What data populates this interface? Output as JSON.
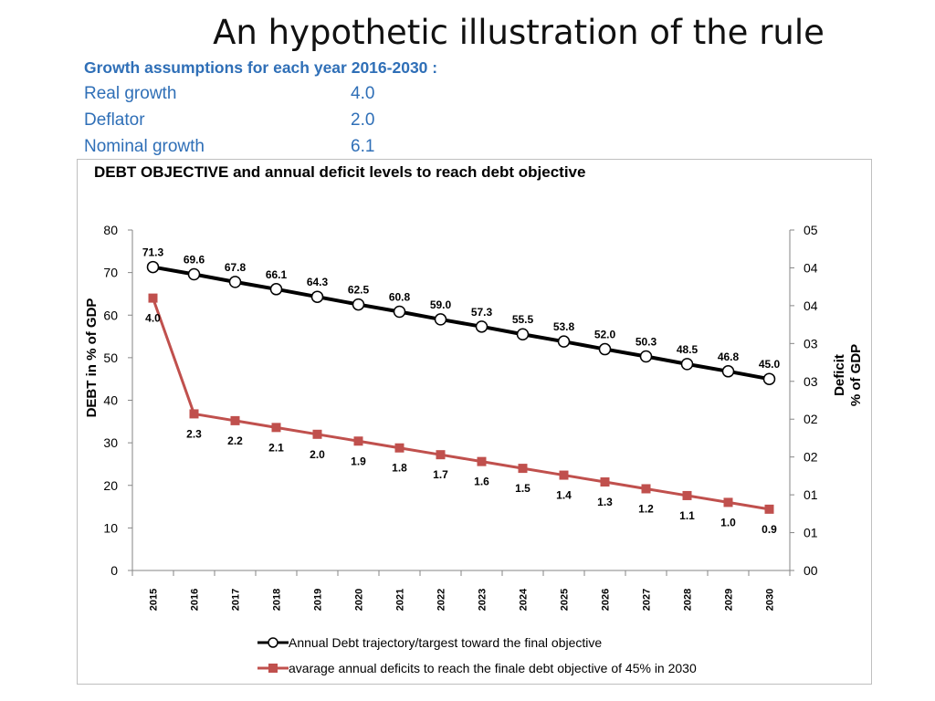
{
  "header": {
    "title": "An hypothetic illustration of the rule"
  },
  "assumptions": {
    "heading": "Growth assumptions for each year 2016-2030 :",
    "rows": [
      {
        "label": "Real growth",
        "value": "4.0"
      },
      {
        "label": "Deflator",
        "value": "2.0"
      },
      {
        "label": "Nominal growth",
        "value": "6.1"
      }
    ]
  },
  "colors": {
    "text_blue": "#2f6fb7",
    "debt_line": "#000000",
    "deficit_line": "#c0504d",
    "frame": "#bfbfbf"
  },
  "chart_data": {
    "type": "line",
    "title": "DEBT OBJECTIVE and annual deficit levels to reach debt objective",
    "ylabel": "DEBT in % of GDP",
    "y2label": "Deficit  % of GDP",
    "ylim": [
      0,
      80
    ],
    "yticks": [
      "0",
      "10",
      "20",
      "30",
      "40",
      "50",
      "60",
      "70",
      "80"
    ],
    "y2lim": [
      0,
      5
    ],
    "y2ticks": [
      "00",
      "01",
      "01",
      "02",
      "02",
      "03",
      "03",
      "04",
      "04",
      "05"
    ],
    "categories": [
      "2015",
      "2016",
      "2017",
      "2018",
      "2019",
      "2020",
      "2021",
      "2022",
      "2023",
      "2024",
      "2025",
      "2026",
      "2027",
      "2028",
      "2029",
      "2030"
    ],
    "legend_position": "bottom",
    "series": [
      {
        "name": "Annual Debt trajectory/targest toward the final objective",
        "axis": "left",
        "marker": "circle",
        "values": [
          71.3,
          69.6,
          67.8,
          66.1,
          64.3,
          62.5,
          60.8,
          59.0,
          57.3,
          55.5,
          53.8,
          52.0,
          50.3,
          48.5,
          46.8,
          45.0
        ],
        "labels": [
          "71.3",
          "69.6",
          "67.8",
          "66.1",
          "64.3",
          "62.5",
          "60.8",
          "59.0",
          "57.3",
          "55.5",
          "53.8",
          "52.0",
          "50.3",
          "48.5",
          "46.8",
          "45.0"
        ]
      },
      {
        "name": "avarage annual deficits to reach the finale debt objective of 45% in 2030",
        "axis": "right",
        "marker": "square",
        "values": [
          4.0,
          2.3,
          2.2,
          2.1,
          2.0,
          1.9,
          1.8,
          1.7,
          1.6,
          1.5,
          1.4,
          1.3,
          1.2,
          1.1,
          1.0,
          0.9
        ],
        "labels": [
          "4.0",
          "2.3",
          "2.2",
          "2.1",
          "2.0",
          "1.9",
          "1.8",
          "1.7",
          "1.6",
          "1.5",
          "1.4",
          "1.3",
          "1.2",
          "1.1",
          "1.0",
          "0.9"
        ]
      }
    ]
  }
}
